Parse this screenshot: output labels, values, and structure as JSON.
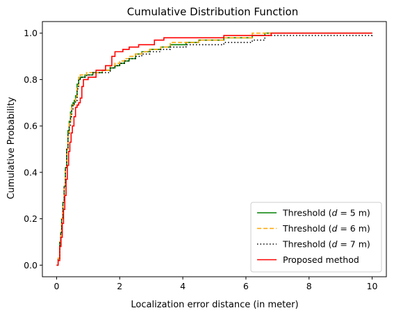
{
  "chart_data": {
    "type": "line",
    "title": "Cumulative Distribution Function",
    "xlabel": "Localization error distance (in meter)",
    "ylabel": "Cumulative Probability",
    "xlim": [
      -0.45,
      10.45
    ],
    "ylim": [
      -0.05,
      1.05
    ],
    "xticks": [
      0,
      2,
      4,
      6,
      8,
      10
    ],
    "yticks": [
      0.0,
      0.2,
      0.4,
      0.6,
      0.8,
      1.0
    ],
    "xtick_labels": [
      "0",
      "2",
      "4",
      "6",
      "8",
      "10"
    ],
    "ytick_labels": [
      "0.0",
      "0.2",
      "0.4",
      "0.6",
      "0.8",
      "1.0"
    ],
    "grid": false,
    "legend_position": "lower-right",
    "series": [
      {
        "name": "Threshold (d = 5 m)",
        "legend_prefix": "Threshold (",
        "legend_italic": "d",
        "legend_suffix": " = 5 m)",
        "color": "#008000",
        "dash": "solid",
        "step": true,
        "x": [
          0.0,
          0.05,
          0.1,
          0.13,
          0.16,
          0.2,
          0.24,
          0.28,
          0.32,
          0.36,
          0.4,
          0.44,
          0.48,
          0.52,
          0.56,
          0.6,
          0.65,
          0.7,
          0.75,
          0.8,
          0.85,
          0.9,
          0.95,
          1.0,
          1.15,
          1.3,
          1.45,
          1.7,
          1.85,
          2.0,
          2.15,
          2.3,
          2.5,
          2.7,
          2.95,
          3.3,
          3.6,
          4.1,
          4.5,
          5.3,
          6.2,
          6.6,
          10.0
        ],
        "y": [
          0.0,
          0.03,
          0.1,
          0.14,
          0.2,
          0.27,
          0.34,
          0.42,
          0.5,
          0.58,
          0.62,
          0.66,
          0.69,
          0.7,
          0.71,
          0.73,
          0.78,
          0.8,
          0.81,
          0.81,
          0.81,
          0.82,
          0.82,
          0.82,
          0.83,
          0.83,
          0.84,
          0.85,
          0.86,
          0.87,
          0.88,
          0.89,
          0.91,
          0.92,
          0.93,
          0.94,
          0.95,
          0.96,
          0.97,
          0.98,
          0.99,
          1.0,
          1.0
        ]
      },
      {
        "name": "Threshold (d = 6 m)",
        "legend_prefix": "Threshold (",
        "legend_italic": "d",
        "legend_suffix": " = 6 m)",
        "color": "#FFA500",
        "dash": "dashed",
        "step": true,
        "x": [
          0.0,
          0.05,
          0.1,
          0.13,
          0.16,
          0.2,
          0.24,
          0.28,
          0.32,
          0.36,
          0.4,
          0.44,
          0.48,
          0.52,
          0.56,
          0.6,
          0.65,
          0.7,
          0.75,
          0.8,
          0.85,
          0.9,
          0.95,
          1.0,
          1.15,
          1.3,
          1.45,
          1.7,
          1.85,
          2.0,
          2.15,
          2.3,
          2.5,
          2.7,
          2.95,
          3.3,
          3.6,
          4.1,
          4.5,
          5.3,
          6.2,
          6.6,
          10.0
        ],
        "y": [
          0.0,
          0.03,
          0.1,
          0.14,
          0.2,
          0.27,
          0.34,
          0.42,
          0.5,
          0.57,
          0.61,
          0.65,
          0.68,
          0.69,
          0.7,
          0.72,
          0.77,
          0.81,
          0.82,
          0.82,
          0.82,
          0.82,
          0.83,
          0.83,
          0.83,
          0.83,
          0.84,
          0.86,
          0.87,
          0.88,
          0.89,
          0.9,
          0.91,
          0.92,
          0.93,
          0.94,
          0.96,
          0.96,
          0.97,
          0.98,
          1.0,
          1.0,
          1.0
        ]
      },
      {
        "name": "Threshold (d = 7 m)",
        "legend_prefix": "Threshold (",
        "legend_italic": "d",
        "legend_suffix": " = 7 m)",
        "color": "#000000",
        "dash": "dotted",
        "step": true,
        "x": [
          0.0,
          0.05,
          0.1,
          0.13,
          0.16,
          0.2,
          0.24,
          0.28,
          0.32,
          0.36,
          0.4,
          0.44,
          0.48,
          0.52,
          0.56,
          0.6,
          0.65,
          0.7,
          0.75,
          0.8,
          0.85,
          0.9,
          0.95,
          1.0,
          1.15,
          1.3,
          1.45,
          1.7,
          1.85,
          2.0,
          2.15,
          2.3,
          2.5,
          2.7,
          2.95,
          3.3,
          3.6,
          4.1,
          4.5,
          5.3,
          6.2,
          6.6,
          10.0
        ],
        "y": [
          0.0,
          0.03,
          0.1,
          0.14,
          0.2,
          0.27,
          0.34,
          0.42,
          0.5,
          0.56,
          0.6,
          0.64,
          0.67,
          0.69,
          0.7,
          0.71,
          0.76,
          0.8,
          0.81,
          0.81,
          0.81,
          0.81,
          0.82,
          0.82,
          0.83,
          0.83,
          0.83,
          0.85,
          0.86,
          0.87,
          0.88,
          0.89,
          0.9,
          0.91,
          0.92,
          0.93,
          0.94,
          0.95,
          0.95,
          0.96,
          0.97,
          0.99,
          1.0
        ]
      },
      {
        "name": "Proposed method",
        "legend_prefix": "Proposed method",
        "legend_italic": "",
        "legend_suffix": "",
        "color": "#FF0000",
        "dash": "solid",
        "step": true,
        "x": [
          0.0,
          0.05,
          0.1,
          0.14,
          0.18,
          0.22,
          0.26,
          0.3,
          0.34,
          0.38,
          0.42,
          0.46,
          0.5,
          0.55,
          0.6,
          0.65,
          0.7,
          0.75,
          0.8,
          0.85,
          0.9,
          0.95,
          1.0,
          1.1,
          1.25,
          1.55,
          1.75,
          1.85,
          1.95,
          2.1,
          2.3,
          2.6,
          3.1,
          3.4,
          4.3,
          5.3,
          6.6,
          6.8,
          10.0
        ],
        "y": [
          0.0,
          0.02,
          0.08,
          0.12,
          0.18,
          0.24,
          0.3,
          0.37,
          0.43,
          0.49,
          0.53,
          0.57,
          0.6,
          0.64,
          0.68,
          0.69,
          0.7,
          0.72,
          0.77,
          0.8,
          0.8,
          0.8,
          0.81,
          0.81,
          0.84,
          0.86,
          0.9,
          0.92,
          0.92,
          0.93,
          0.94,
          0.95,
          0.97,
          0.98,
          0.98,
          0.99,
          0.99,
          1.0,
          1.0
        ]
      }
    ]
  }
}
